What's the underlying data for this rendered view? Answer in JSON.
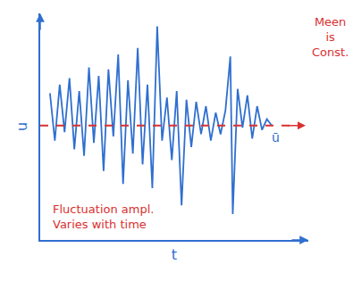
{
  "chart_data": {
    "type": "line",
    "x_label": "t",
    "y_label": "u",
    "xlim": [
      0,
      11
    ],
    "ylim": [
      0,
      10.5
    ],
    "xticks": [],
    "yticks": [],
    "tick_labels": false,
    "grid": false,
    "series": [
      {
        "color": "#2f6fd0",
        "x": [
          0.4,
          0.6,
          0.8,
          1.0,
          1.2,
          1.4,
          1.6,
          1.8,
          2.0,
          2.2,
          2.4,
          2.6,
          2.8,
          3.0,
          3.2,
          3.4,
          3.6,
          3.8,
          4.0,
          4.2,
          4.4,
          4.6,
          4.8,
          5.0,
          5.2,
          5.4,
          5.6,
          5.8,
          6.0,
          6.2,
          6.4,
          6.6,
          6.8,
          7.0,
          7.2,
          7.4,
          7.6,
          7.8,
          7.9,
          8.1,
          8.3,
          8.5,
          8.7,
          8.9,
          9.1,
          9.3,
          9.5
        ],
        "values": [
          6.8,
          4.6,
          7.2,
          5.0,
          7.5,
          4.2,
          6.9,
          3.9,
          8.0,
          4.5,
          7.6,
          3.2,
          7.9,
          4.8,
          8.6,
          2.6,
          7.4,
          4.0,
          8.9,
          3.5,
          7.2,
          2.4,
          9.9,
          4.6,
          6.6,
          3.7,
          6.9,
          1.6,
          6.5,
          4.3,
          6.4,
          4.9,
          6.2,
          4.6,
          5.9,
          4.9,
          6.0,
          8.5,
          1.2,
          7.0,
          5.2,
          6.7,
          4.7,
          6.2,
          5.1,
          5.6,
          5.3
        ]
      }
    ],
    "mean": {
      "value": 5.3,
      "label": "ū",
      "color": "#d93030",
      "line_style": "dashed"
    },
    "annotations": [
      {
        "lines": [
          "Meen",
          "is",
          "Const."
        ],
        "color": "#d93030"
      },
      {
        "lines": [
          "Fluctuation ampl.",
          "Varies with time"
        ],
        "color": "#d93030"
      }
    ]
  }
}
